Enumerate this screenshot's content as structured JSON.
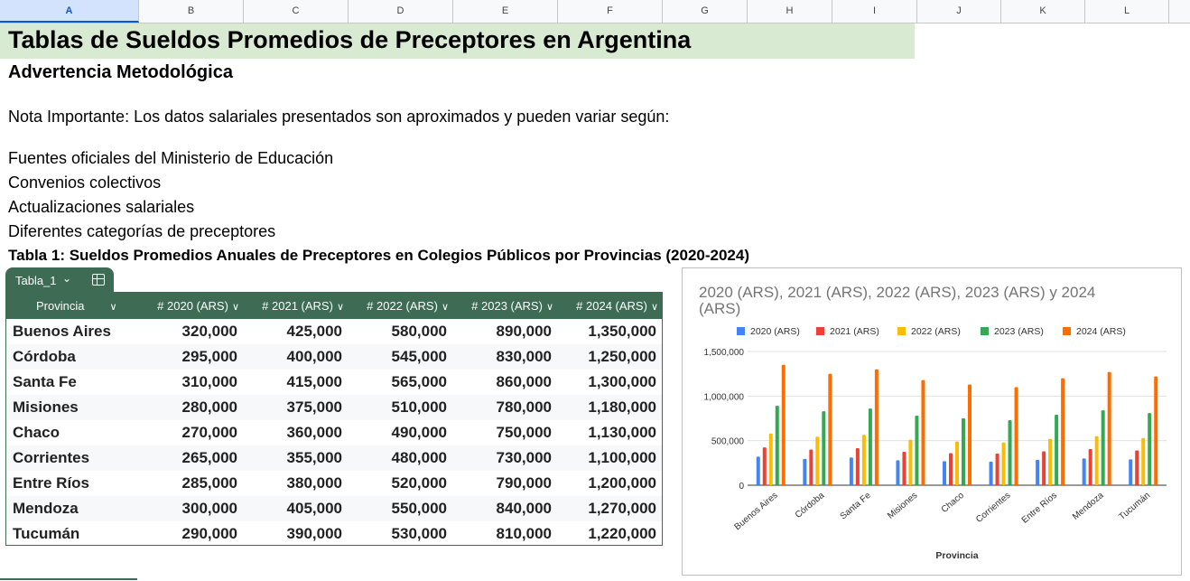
{
  "columns": [
    "A",
    "B",
    "C",
    "D",
    "E",
    "F",
    "G",
    "H",
    "I",
    "J",
    "K",
    "L"
  ],
  "selected_column": "A",
  "sheet": {
    "title": "Tablas de Sueldos Promedios de Preceptores en Argentina",
    "subtitle": "Advertencia Metodológica",
    "note": "Nota Importante: Los datos salariales presentados son aproximados y pueden variar según:",
    "bullets": [
      "Fuentes oficiales del Ministerio de Educación",
      "Convenios colectivos",
      "Actualizaciones salariales",
      "Diferentes categorías de preceptores"
    ],
    "table_title": "Tabla 1: Sueldos Promedios Anuales de Preceptores en Colegios Públicos por Provincias (2020-2024)"
  },
  "table": {
    "name": "Tabla_1",
    "headers": [
      "Provincia",
      "# 2020 (ARS)",
      "# 2021 (ARS)",
      "# 2022 (ARS)",
      "# 2023 (ARS)",
      "# 2024 (ARS)"
    ],
    "rows": [
      [
        "Buenos Aires",
        "320,000",
        "425,000",
        "580,000",
        "890,000",
        "1,350,000"
      ],
      [
        "Córdoba",
        "295,000",
        "400,000",
        "545,000",
        "830,000",
        "1,250,000"
      ],
      [
        "Santa Fe",
        "310,000",
        "415,000",
        "565,000",
        "860,000",
        "1,300,000"
      ],
      [
        "Misiones",
        "280,000",
        "375,000",
        "510,000",
        "780,000",
        "1,180,000"
      ],
      [
        "Chaco",
        "270,000",
        "360,000",
        "490,000",
        "750,000",
        "1,130,000"
      ],
      [
        "Corrientes",
        "265,000",
        "355,000",
        "480,000",
        "730,000",
        "1,100,000"
      ],
      [
        "Entre Ríos",
        "285,000",
        "380,000",
        "520,000",
        "790,000",
        "1,200,000"
      ],
      [
        "Mendoza",
        "300,000",
        "405,000",
        "550,000",
        "840,000",
        "1,270,000"
      ],
      [
        "Tucumán",
        "290,000",
        "390,000",
        "530,000",
        "810,000",
        "1,220,000"
      ]
    ],
    "header_color": "#3d6b54"
  },
  "chart_data": {
    "type": "bar",
    "title": "2020 (ARS), 2021 (ARS), 2022 (ARS), 2023 (ARS) y 2024 (ARS)",
    "xlabel": "Provincia",
    "ylabel": "",
    "categories": [
      "Buenos Aires",
      "Córdoba",
      "Santa Fe",
      "Misiones",
      "Chaco",
      "Corrientes",
      "Entre Ríos",
      "Mendoza",
      "Tucumán"
    ],
    "series": [
      {
        "name": "2020 (ARS)",
        "color": "#4285f4",
        "values": [
          320000,
          295000,
          310000,
          280000,
          270000,
          265000,
          285000,
          300000,
          290000
        ]
      },
      {
        "name": "2021 (ARS)",
        "color": "#ea4335",
        "values": [
          425000,
          400000,
          415000,
          375000,
          360000,
          355000,
          380000,
          405000,
          390000
        ]
      },
      {
        "name": "2022 (ARS)",
        "color": "#fbbc04",
        "values": [
          580000,
          545000,
          565000,
          510000,
          490000,
          480000,
          520000,
          550000,
          530000
        ]
      },
      {
        "name": "2023 (ARS)",
        "color": "#34a853",
        "values": [
          890000,
          830000,
          860000,
          780000,
          750000,
          730000,
          790000,
          840000,
          810000
        ]
      },
      {
        "name": "2024 (ARS)",
        "color": "#ff6d01",
        "values": [
          1350000,
          1250000,
          1300000,
          1180000,
          1130000,
          1100000,
          1200000,
          1270000,
          1220000
        ]
      }
    ],
    "ylim": [
      0,
      1500000
    ],
    "yticks": [
      "0",
      "500,000",
      "1,000,000",
      "1,500,000"
    ],
    "grid": true,
    "legend": "top"
  }
}
